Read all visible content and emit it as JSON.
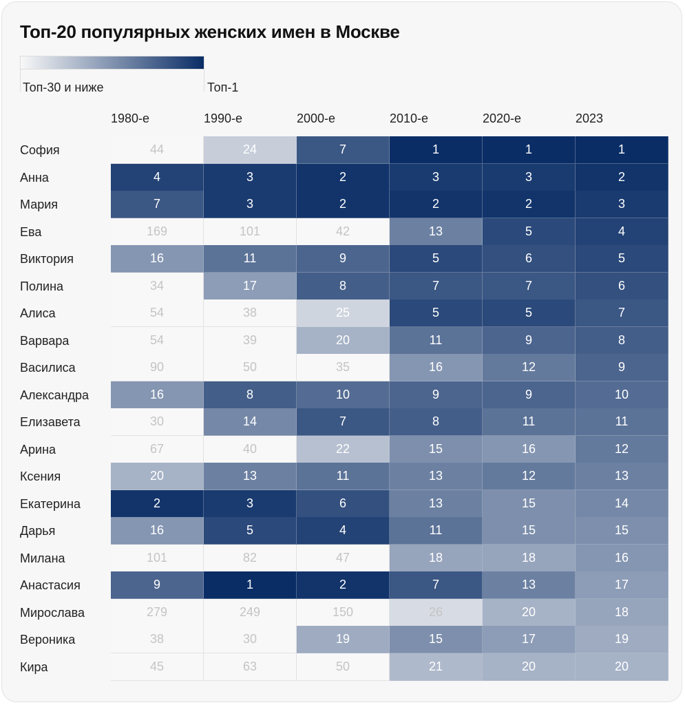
{
  "chart_data": {
    "type": "heatmap",
    "title": "Топ-20 популярных женских имен в Москве",
    "legend": {
      "low_label": "Топ-30 и ниже",
      "high_label": "Топ-1",
      "low_color": "#f8f8f8",
      "high_color": "#0a2d66",
      "placement": "top-left"
    },
    "columns": [
      "1980-е",
      "1990-е",
      "2000-е",
      "2010-е",
      "2020-е",
      "2023"
    ],
    "rows": [
      {
        "name": "София",
        "values": [
          44,
          24,
          7,
          1,
          1,
          1
        ]
      },
      {
        "name": "Анна",
        "values": [
          4,
          3,
          2,
          3,
          3,
          2
        ]
      },
      {
        "name": "Мария",
        "values": [
          7,
          3,
          2,
          2,
          2,
          3
        ]
      },
      {
        "name": "Ева",
        "values": [
          169,
          101,
          42,
          13,
          5,
          4
        ]
      },
      {
        "name": "Виктория",
        "values": [
          16,
          11,
          9,
          5,
          6,
          5
        ]
      },
      {
        "name": "Полина",
        "values": [
          34,
          17,
          8,
          7,
          7,
          6
        ]
      },
      {
        "name": "Алиса",
        "values": [
          54,
          38,
          25,
          5,
          5,
          7
        ]
      },
      {
        "name": "Варвара",
        "values": [
          54,
          39,
          20,
          11,
          9,
          8
        ]
      },
      {
        "name": "Василиса",
        "values": [
          90,
          50,
          35,
          16,
          12,
          9
        ]
      },
      {
        "name": "Александра",
        "values": [
          16,
          8,
          10,
          9,
          9,
          10
        ]
      },
      {
        "name": "Елизавета",
        "values": [
          30,
          14,
          7,
          8,
          11,
          11
        ]
      },
      {
        "name": "Арина",
        "values": [
          67,
          40,
          22,
          15,
          16,
          12
        ]
      },
      {
        "name": "Ксения",
        "values": [
          20,
          13,
          11,
          13,
          12,
          13
        ]
      },
      {
        "name": "Екатерина",
        "values": [
          2,
          3,
          6,
          13,
          15,
          14
        ]
      },
      {
        "name": "Дарья",
        "values": [
          16,
          5,
          4,
          11,
          15,
          15
        ]
      },
      {
        "name": "Милана",
        "values": [
          101,
          82,
          47,
          18,
          18,
          16
        ]
      },
      {
        "name": "Анастасия",
        "values": [
          9,
          1,
          2,
          7,
          13,
          17
        ]
      },
      {
        "name": "Мирослава",
        "values": [
          279,
          249,
          150,
          26,
          20,
          18
        ]
      },
      {
        "name": "Вероника",
        "values": [
          38,
          30,
          19,
          15,
          17,
          19
        ]
      },
      {
        "name": "Кира",
        "values": [
          45,
          63,
          50,
          21,
          20,
          20
        ]
      }
    ]
  }
}
